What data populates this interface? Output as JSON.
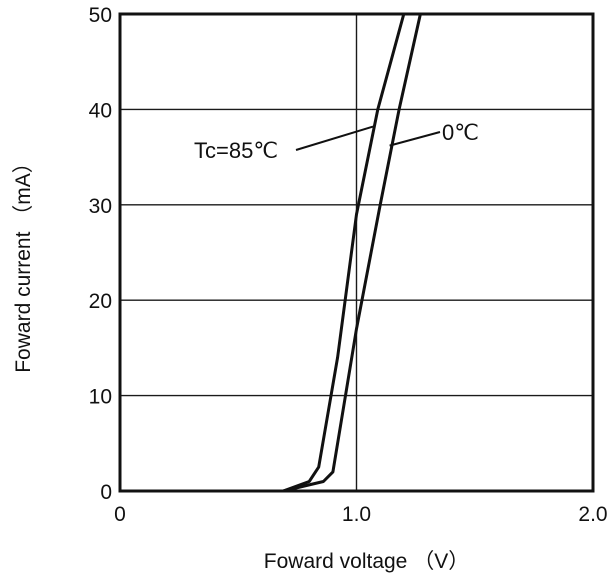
{
  "chart_data": {
    "type": "line",
    "title": "",
    "xlabel": "Foward voltage （V）",
    "ylabel": "Foward current （mA）",
    "xlim": [
      0,
      2.0
    ],
    "ylim": [
      0,
      50
    ],
    "x_ticks": [
      {
        "value": 0,
        "label": "0"
      },
      {
        "value": 1.0,
        "label": "1.0"
      },
      {
        "value": 2.0,
        "label": "2.0"
      }
    ],
    "y_ticks": [
      {
        "value": 0,
        "label": "0"
      },
      {
        "value": 10,
        "label": "10"
      },
      {
        "value": 20,
        "label": "20"
      },
      {
        "value": 30,
        "label": "30"
      },
      {
        "value": 40,
        "label": "40"
      },
      {
        "value": 50,
        "label": "50"
      }
    ],
    "grid": {
      "horizontal": [
        10,
        20,
        30,
        40
      ],
      "vertical": [
        1.0
      ]
    },
    "series": [
      {
        "label": "Tc=85℃",
        "x": [
          0.69,
          0.8,
          0.84,
          0.92,
          1.0,
          1.09,
          1.2
        ],
        "y": [
          0,
          1.0,
          2.5,
          14.0,
          29.0,
          40.0,
          50.0
        ]
      },
      {
        "label": "0℃",
        "x": [
          0.69,
          0.86,
          0.9,
          1.0,
          1.1,
          1.18,
          1.27
        ],
        "y": [
          0,
          1.0,
          2.0,
          17.0,
          30.0,
          40.0,
          50.0
        ]
      }
    ],
    "annotations": [
      {
        "text": "Tc=85℃",
        "series": 0,
        "point": [
          1.07,
          38.2
        ]
      },
      {
        "text": "0℃",
        "series": 1,
        "point": [
          1.14,
          36.2
        ]
      }
    ]
  }
}
